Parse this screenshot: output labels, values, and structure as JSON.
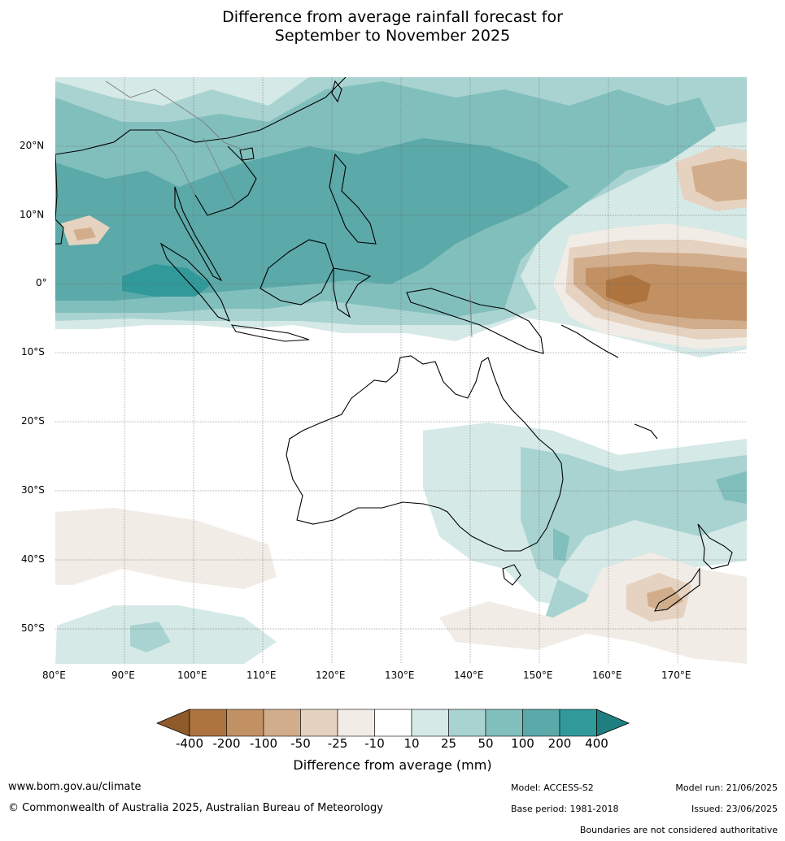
{
  "title": {
    "line1": "Difference from average rainfall forecast for",
    "line2": "September to November 2025"
  },
  "map": {
    "region": "Indo-Pacific and Australia",
    "lon_labels": [
      "80°E",
      "90°E",
      "100°E",
      "110°E",
      "120°E",
      "130°E",
      "140°E",
      "150°E",
      "160°E",
      "170°E"
    ],
    "lat_labels": [
      "20°N",
      "10°N",
      "0°",
      "10°S",
      "20°S",
      "30°S",
      "40°S",
      "50°S"
    ],
    "lon_range": [
      80,
      180
    ],
    "lat_range": [
      -55,
      30
    ],
    "gridlines": true,
    "boundaries": "coastlines and country borders"
  },
  "colorbar": {
    "title": "Difference from average (mm)",
    "ticks": [
      "-400",
      "-200",
      "-100",
      "-50",
      "-25",
      "-10",
      "10",
      "25",
      "50",
      "100",
      "200",
      "400"
    ],
    "colors": [
      "#8f5a2a",
      "#ad7440",
      "#c19063",
      "#d2ad8c",
      "#e5d2c0",
      "#f2ece6",
      "#ffffff",
      "#d5e9e7",
      "#a9d3d1",
      "#81bfbd",
      "#5ba9a8",
      "#31999a",
      "#1f7f80"
    ],
    "extend": "both"
  },
  "footer": {
    "website": "www.bom.gov.au/climate",
    "copyright": "© Commonwealth of Australia 2025, Australian Bureau of Meteorology",
    "model": "Model: ACCESS-S2",
    "model_run": "Model run: 21/06/2025",
    "base_period": "Base period: 1981-2018",
    "issued": "Issued: 23/06/2025",
    "disclaimer": "Boundaries are not considered authoritative"
  }
}
